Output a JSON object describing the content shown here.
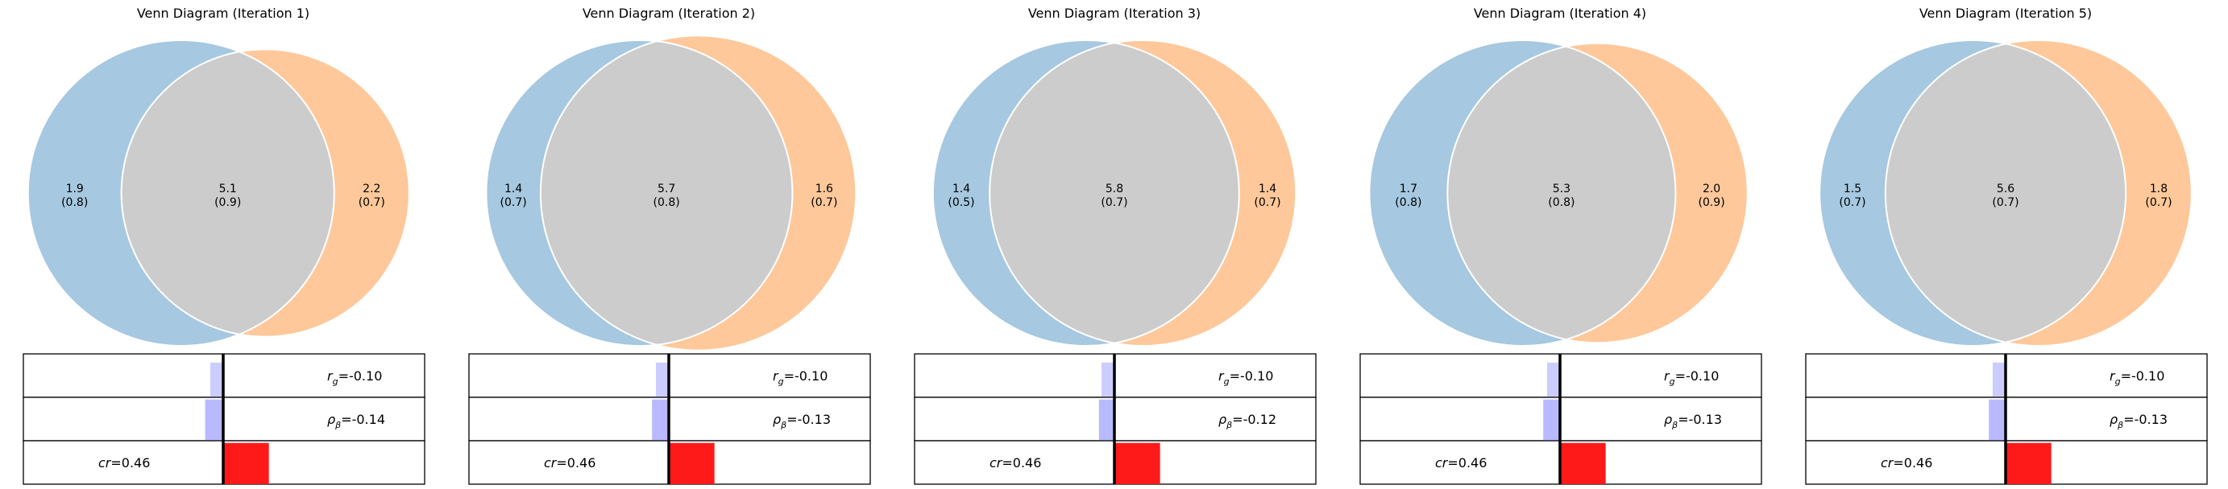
{
  "colors": {
    "left_only": "#a6c8e0",
    "right_only": "#fec89a",
    "overlap": "#cccccc",
    "circle_edge": "#ffffff",
    "bar_rg": "#ccccff",
    "bar_rho": "#b9b9ff",
    "bar_cr": "#ff1a1a",
    "axis_line": "#000000",
    "box_edge": "#000000"
  },
  "chart_data": [
    {
      "type": "venn",
      "title": "Venn Diagram (Iteration 1)",
      "regions": {
        "left": {
          "value": "1.9",
          "sub": "(0.8)"
        },
        "overlap": {
          "value": "5.1",
          "sub": "(0.9)"
        },
        "right": {
          "value": "2.2",
          "sub": "(0.7)"
        }
      },
      "circles": {
        "left_r": 1.0,
        "right_r": 0.94,
        "distance": 0.52
      },
      "stats": {
        "rg": {
          "label_sym": "r",
          "label_sub": "g",
          "text": "=-0.10",
          "value": -0.1
        },
        "rho": {
          "label_sym": "ρ",
          "label_sub": "β",
          "text": "=-0.14",
          "value": -0.14
        },
        "cr": {
          "label_sym": "cr",
          "text": "=0.46",
          "value": 0.46
        }
      }
    },
    {
      "type": "venn",
      "title": "Venn Diagram (Iteration 2)",
      "regions": {
        "left": {
          "value": "1.4",
          "sub": "(0.7)"
        },
        "overlap": {
          "value": "5.7",
          "sub": "(0.8)"
        },
        "right": {
          "value": "1.6",
          "sub": "(0.7)"
        }
      },
      "circles": {
        "left_r": 1.0,
        "right_r": 1.03,
        "distance": 0.4
      },
      "stats": {
        "rg": {
          "label_sym": "r",
          "label_sub": "g",
          "text": "=-0.10",
          "value": -0.1
        },
        "rho": {
          "label_sym": "ρ",
          "label_sub": "β",
          "text": "=-0.13",
          "value": -0.13
        },
        "cr": {
          "label_sym": "cr",
          "text": "=0.46",
          "value": 0.46
        }
      }
    },
    {
      "type": "venn",
      "title": "Venn Diagram (Iteration 3)",
      "regions": {
        "left": {
          "value": "1.4",
          "sub": "(0.5)"
        },
        "overlap": {
          "value": "5.8",
          "sub": "(0.7)"
        },
        "right": {
          "value": "1.4",
          "sub": "(0.7)"
        }
      },
      "circles": {
        "left_r": 1.0,
        "right_r": 1.0,
        "distance": 0.37
      },
      "stats": {
        "rg": {
          "label_sym": "r",
          "label_sub": "g",
          "text": "=-0.10",
          "value": -0.1
        },
        "rho": {
          "label_sym": "ρ",
          "label_sub": "β",
          "text": "=-0.12",
          "value": -0.12
        },
        "cr": {
          "label_sym": "cr",
          "text": "=0.46",
          "value": 0.46
        }
      }
    },
    {
      "type": "venn",
      "title": "Venn Diagram (Iteration 4)",
      "regions": {
        "left": {
          "value": "1.7",
          "sub": "(0.8)"
        },
        "overlap": {
          "value": "5.3",
          "sub": "(0.8)"
        },
        "right": {
          "value": "2.0",
          "sub": "(0.9)"
        }
      },
      "circles": {
        "left_r": 1.0,
        "right_r": 0.98,
        "distance": 0.48
      },
      "stats": {
        "rg": {
          "label_sym": "r",
          "label_sub": "g",
          "text": "=-0.10",
          "value": -0.1
        },
        "rho": {
          "label_sym": "ρ",
          "label_sub": "β",
          "text": "=-0.13",
          "value": -0.13
        },
        "cr": {
          "label_sym": "cr",
          "text": "=0.46",
          "value": 0.46
        }
      }
    },
    {
      "type": "venn",
      "title": "Venn Diagram (Iteration 5)",
      "regions": {
        "left": {
          "value": "1.5",
          "sub": "(0.7)"
        },
        "overlap": {
          "value": "5.6",
          "sub": "(0.7)"
        },
        "right": {
          "value": "1.8",
          "sub": "(0.7)"
        }
      },
      "circles": {
        "left_r": 1.0,
        "right_r": 1.0,
        "distance": 0.43
      },
      "stats": {
        "rg": {
          "label_sym": "r",
          "label_sub": "g",
          "text": "=-0.10",
          "value": -0.1
        },
        "rho": {
          "label_sym": "ρ",
          "label_sub": "β",
          "text": "=-0.13",
          "value": -0.13
        },
        "cr": {
          "label_sym": "cr",
          "text": "=0.46",
          "value": 0.46
        }
      }
    }
  ]
}
